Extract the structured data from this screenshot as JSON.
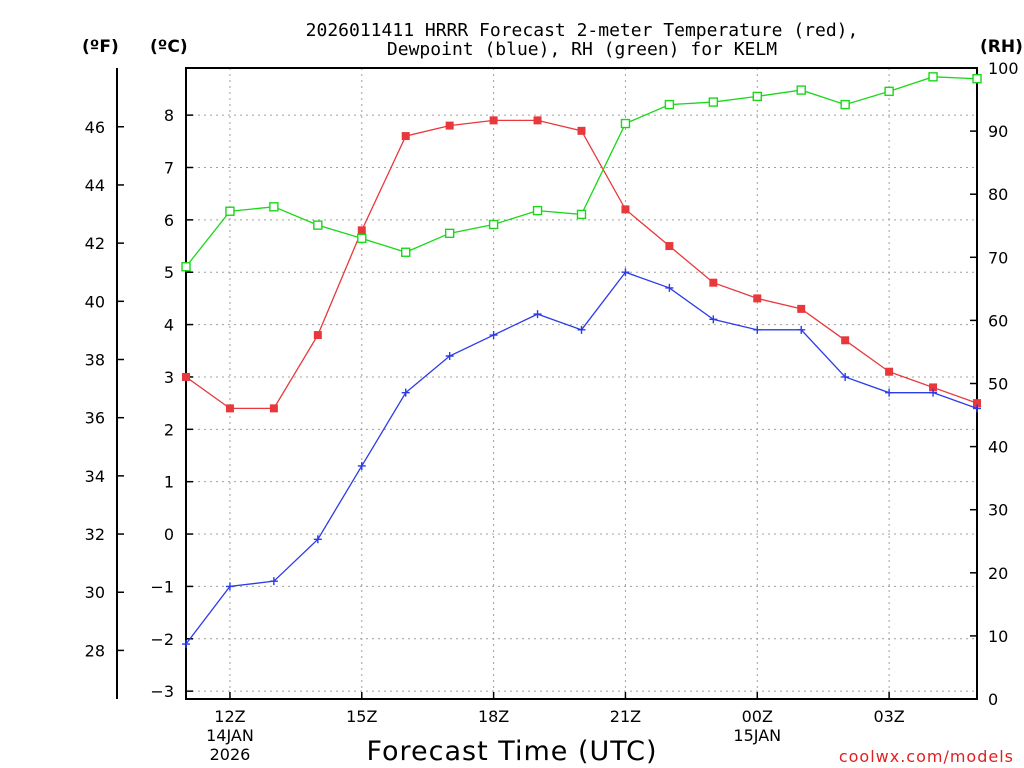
{
  "chart_data": {
    "type": "line",
    "title_line1": "2026011411 HRRR Forecast 2-meter Temperature (red),",
    "title_line2": "Dewpoint (blue), RH (green) for KELM",
    "xlabel": "Forecast Time (UTC)",
    "credit": "coolwx.com/models",
    "axis_labels": {
      "left_outer": "(ºF)",
      "left_inner": "(ºC)",
      "right": "(RH)"
    },
    "x_range_hours": [
      11,
      29
    ],
    "x_ticks": [
      {
        "hour": 12,
        "label": "12Z",
        "sub1": "14JAN",
        "sub2": "2026"
      },
      {
        "hour": 15,
        "label": "15Z",
        "sub1": "",
        "sub2": ""
      },
      {
        "hour": 18,
        "label": "18Z",
        "sub1": "",
        "sub2": ""
      },
      {
        "hour": 21,
        "label": "21Z",
        "sub1": "",
        "sub2": ""
      },
      {
        "hour": 24,
        "label": "00Z",
        "sub1": "15JAN",
        "sub2": ""
      },
      {
        "hour": 27,
        "label": "03Z",
        "sub1": "",
        "sub2": ""
      }
    ],
    "celsius_axis": {
      "range": [
        -3.15,
        8.9
      ],
      "ticks": [
        -3,
        -2,
        -1,
        0,
        1,
        2,
        3,
        4,
        5,
        6,
        7,
        8
      ]
    },
    "fahrenheit_axis": {
      "ticks": [
        28,
        30,
        32,
        34,
        36,
        38,
        40,
        42,
        44,
        46
      ]
    },
    "rh_axis": {
      "range": [
        0,
        100
      ],
      "ticks": [
        0,
        10,
        20,
        30,
        40,
        50,
        60,
        70,
        80,
        90,
        100
      ]
    },
    "x_hours": [
      11,
      12,
      13,
      14,
      15,
      16,
      17,
      18,
      19,
      20,
      21,
      22,
      23,
      24,
      25,
      26,
      27,
      28,
      29
    ],
    "series": [
      {
        "name": "2-meter Temperature",
        "color": "#e8383c",
        "marker": "filled-square",
        "axis": "celsius",
        "values": [
          3.0,
          2.4,
          2.4,
          3.8,
          5.8,
          7.6,
          7.8,
          7.9,
          7.9,
          7.7,
          6.2,
          5.5,
          4.8,
          4.5,
          4.3,
          3.7,
          3.1,
          2.8,
          2.5
        ]
      },
      {
        "name": "Dewpoint",
        "color": "#2b3be8",
        "marker": "plus",
        "axis": "celsius",
        "values": [
          -2.1,
          -1.0,
          -0.9,
          -0.1,
          1.3,
          2.7,
          3.4,
          3.8,
          4.2,
          3.9,
          5.0,
          4.7,
          4.1,
          3.9,
          3.9,
          3.0,
          2.7,
          2.7,
          2.4
        ]
      },
      {
        "name": "RH",
        "color": "#18d818",
        "marker": "open-square",
        "axis": "rh",
        "values": [
          68.5,
          77.3,
          78.0,
          75.1,
          73.0,
          70.8,
          73.8,
          75.2,
          77.4,
          76.8,
          91.2,
          94.2,
          94.6,
          95.5,
          96.5,
          94.2,
          96.3,
          98.6,
          98.3
        ]
      }
    ]
  }
}
